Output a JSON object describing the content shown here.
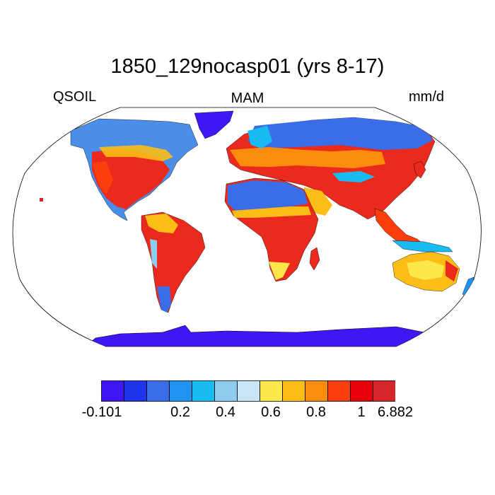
{
  "title": "1850_129nocasp01 (yrs 8-17)",
  "variable": "QSOIL",
  "season": "MAM",
  "units": "mm/d",
  "colorbar": {
    "colors": [
      "#3f17f5",
      "#1f35eb",
      "#3a6ee8",
      "#1f92f2",
      "#18bcf2",
      "#8dcbef",
      "#c8e6f6",
      "#fde84c",
      "#fcbd16",
      "#fc8c0c",
      "#fb3e0b",
      "#e7000a",
      "#d7262a"
    ],
    "labels": [
      "-0.101",
      "0.2",
      "0.4",
      "0.6",
      "0.8",
      "1",
      "6.882"
    ]
  },
  "map": {
    "projection": "robinson",
    "ocean_color": "#ffffff",
    "antarctica_color": "#3f17f5"
  }
}
